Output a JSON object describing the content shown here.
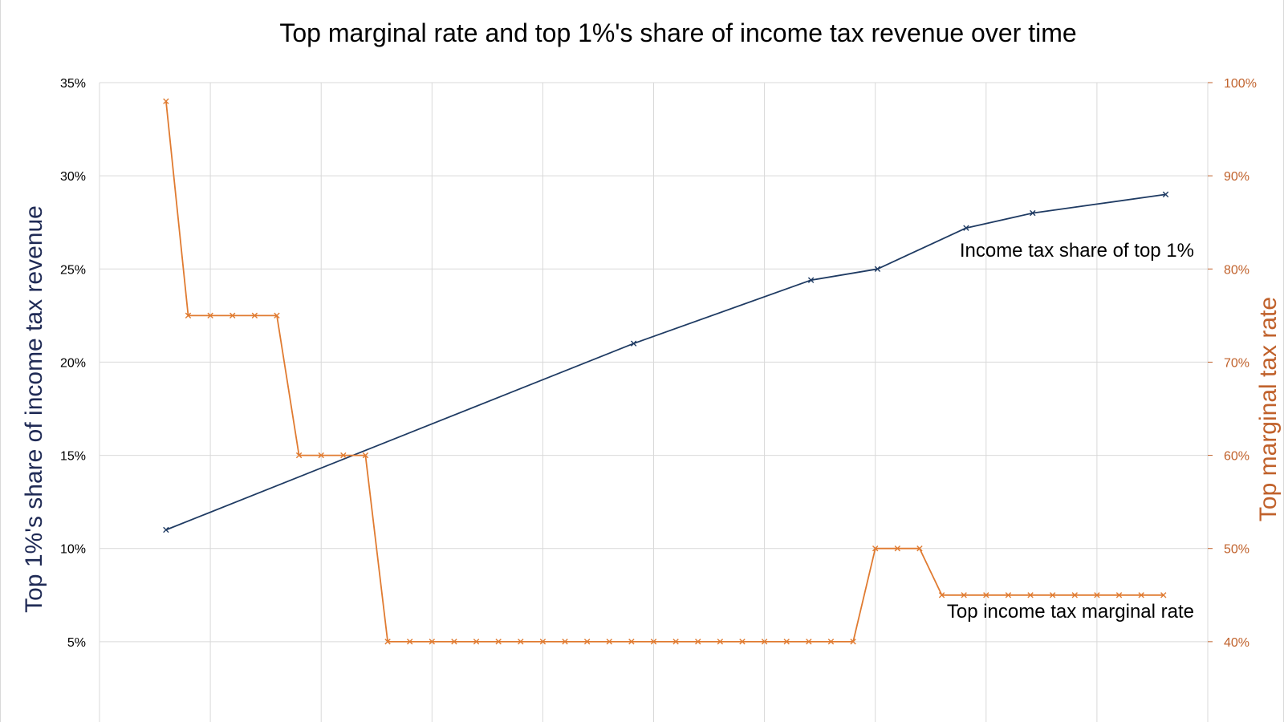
{
  "chart_data": {
    "type": "line",
    "title": "Top marginal rate and top 1%'s share of income tax revenue over time",
    "ylabel_left": "Top 1%'s share of income tax revenue",
    "ylabel_right": "Top marginal tax rate",
    "y_left": {
      "min": 0,
      "max": 35,
      "ticks": [
        "5%",
        "10%",
        "15%",
        "20%",
        "25%",
        "30%",
        "35%"
      ],
      "tick_values": [
        5,
        10,
        15,
        20,
        25,
        30,
        35
      ]
    },
    "y_right": {
      "min": 30,
      "max": 100,
      "ticks": [
        "40%",
        "50%",
        "60%",
        "70%",
        "80%",
        "90%",
        "100%"
      ],
      "tick_values": [
        40,
        50,
        60,
        70,
        80,
        90,
        100
      ]
    },
    "x": {
      "min": 0,
      "max": 50,
      "gridlines": [
        0,
        5,
        10,
        15,
        20,
        25,
        30,
        35,
        40,
        45,
        50
      ]
    },
    "grid": true,
    "series": [
      {
        "name": "Income tax share of top 1%",
        "axis": "left",
        "color": "#1f3b63",
        "points": [
          [
            3,
            11
          ],
          [
            24.1,
            21
          ],
          [
            32.1,
            24.4
          ],
          [
            35.1,
            25
          ],
          [
            39.1,
            27.2
          ],
          [
            42.1,
            28
          ],
          [
            48.1,
            29
          ]
        ]
      },
      {
        "name": "Top income tax marginal rate",
        "axis": "right",
        "color": "#e07b31",
        "points": [
          [
            3,
            98
          ],
          [
            4,
            75
          ],
          [
            5,
            75
          ],
          [
            6,
            75
          ],
          [
            7,
            75
          ],
          [
            8,
            75
          ],
          [
            9,
            60
          ],
          [
            10,
            60
          ],
          [
            11,
            60
          ],
          [
            12,
            60
          ],
          [
            13,
            40
          ],
          [
            14,
            40
          ],
          [
            15,
            40
          ],
          [
            16,
            40
          ],
          [
            17,
            40
          ],
          [
            18,
            40
          ],
          [
            19,
            40
          ],
          [
            20,
            40
          ],
          [
            21,
            40
          ],
          [
            22,
            40
          ],
          [
            23,
            40
          ],
          [
            24,
            40
          ],
          [
            25,
            40
          ],
          [
            26,
            40
          ],
          [
            27,
            40
          ],
          [
            28,
            40
          ],
          [
            29,
            40
          ],
          [
            30,
            40
          ],
          [
            31,
            40
          ],
          [
            32,
            40
          ],
          [
            33,
            40
          ],
          [
            34,
            40
          ],
          [
            35,
            50
          ],
          [
            36,
            50
          ],
          [
            37,
            50
          ],
          [
            38,
            45
          ],
          [
            39,
            45
          ],
          [
            40,
            45
          ],
          [
            41,
            45
          ],
          [
            42,
            45
          ],
          [
            43,
            45
          ],
          [
            44,
            45
          ],
          [
            45,
            45
          ],
          [
            46,
            45
          ],
          [
            47,
            45
          ],
          [
            48,
            45
          ]
        ]
      }
    ],
    "annotations": [
      "Income tax share of top 1%",
      "Top income tax marginal rate"
    ]
  },
  "colors": {
    "left_axis": "#1f2a55",
    "right_axis": "#c0612b",
    "grid": "#d9d9d9"
  }
}
